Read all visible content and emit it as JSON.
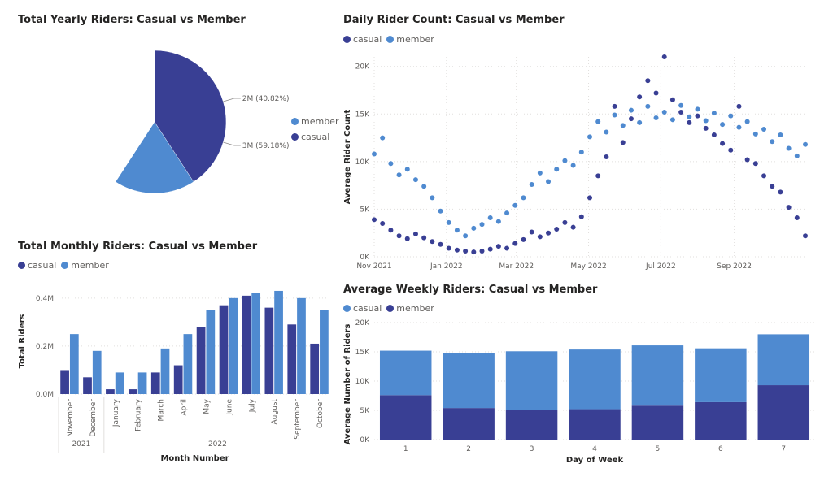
{
  "colors": {
    "casual": "#393f94",
    "member": "#4f8ad0"
  },
  "chart_data": [
    {
      "id": "pie",
      "type": "pie",
      "title": "Total Yearly Riders: Casual vs Member",
      "slices": [
        {
          "name": "casual",
          "value": 40.82,
          "label": "2M (40.82%)"
        },
        {
          "name": "member",
          "value": 59.18,
          "label": "3M (59.18%)"
        }
      ],
      "legend": [
        "member",
        "casual"
      ],
      "legend_position": "right"
    },
    {
      "id": "scatter",
      "type": "scatter",
      "title": "Daily Rider Count: Casual vs Member",
      "ylabel": "Average Rider Count",
      "xlabel": "",
      "x_ticks": [
        "Nov 2021",
        "Jan 2022",
        "Mar 2022",
        "May 2022",
        "Jul 2022",
        "Sep 2022"
      ],
      "y_ticks": [
        "0K",
        "5K",
        "10K",
        "15K",
        "20K"
      ],
      "ylim": [
        0,
        21000
      ],
      "xlim": [
        "2021-11-01",
        "2022-10-31"
      ],
      "legend": [
        "casual",
        "member"
      ],
      "legend_position": "top-left",
      "series": [
        {
          "name": "casual",
          "points": [
            [
              "2021-11-01",
              3900
            ],
            [
              "2021-11-08",
              3500
            ],
            [
              "2021-11-15",
              2800
            ],
            [
              "2021-11-22",
              2200
            ],
            [
              "2021-11-29",
              1900
            ],
            [
              "2021-12-06",
              2400
            ],
            [
              "2021-12-13",
              2000
            ],
            [
              "2021-12-20",
              1600
            ],
            [
              "2021-12-27",
              1300
            ],
            [
              "2022-01-03",
              900
            ],
            [
              "2022-01-10",
              700
            ],
            [
              "2022-01-17",
              600
            ],
            [
              "2022-01-24",
              500
            ],
            [
              "2022-01-31",
              600
            ],
            [
              "2022-02-07",
              800
            ],
            [
              "2022-02-14",
              1100
            ],
            [
              "2022-02-21",
              900
            ],
            [
              "2022-02-28",
              1400
            ],
            [
              "2022-03-07",
              1800
            ],
            [
              "2022-03-14",
              2600
            ],
            [
              "2022-03-21",
              2100
            ],
            [
              "2022-03-28",
              2500
            ],
            [
              "2022-04-04",
              2900
            ],
            [
              "2022-04-11",
              3600
            ],
            [
              "2022-04-18",
              3100
            ],
            [
              "2022-04-25",
              4200
            ],
            [
              "2022-05-02",
              6200
            ],
            [
              "2022-05-09",
              8500
            ],
            [
              "2022-05-16",
              10500
            ],
            [
              "2022-05-23",
              15800
            ],
            [
              "2022-05-30",
              12000
            ],
            [
              "2022-06-06",
              14500
            ],
            [
              "2022-06-13",
              16800
            ],
            [
              "2022-06-20",
              18500
            ],
            [
              "2022-06-27",
              17200
            ],
            [
              "2022-07-04",
              21000
            ],
            [
              "2022-07-11",
              16500
            ],
            [
              "2022-07-18",
              15200
            ],
            [
              "2022-07-25",
              14100
            ],
            [
              "2022-08-01",
              14800
            ],
            [
              "2022-08-08",
              13500
            ],
            [
              "2022-08-15",
              12800
            ],
            [
              "2022-08-22",
              11900
            ],
            [
              "2022-08-29",
              11200
            ],
            [
              "2022-09-05",
              15800
            ],
            [
              "2022-09-12",
              10200
            ],
            [
              "2022-09-19",
              9800
            ],
            [
              "2022-09-26",
              8500
            ],
            [
              "2022-10-03",
              7400
            ],
            [
              "2022-10-10",
              6800
            ],
            [
              "2022-10-17",
              5200
            ],
            [
              "2022-10-24",
              4100
            ],
            [
              "2022-10-31",
              2200
            ]
          ]
        },
        {
          "name": "member",
          "points": [
            [
              "2021-11-01",
              10800
            ],
            [
              "2021-11-08",
              12500
            ],
            [
              "2021-11-15",
              9800
            ],
            [
              "2021-11-22",
              8600
            ],
            [
              "2021-11-29",
              9200
            ],
            [
              "2021-12-06",
              8100
            ],
            [
              "2021-12-13",
              7400
            ],
            [
              "2021-12-20",
              6200
            ],
            [
              "2021-12-27",
              4800
            ],
            [
              "2022-01-03",
              3600
            ],
            [
              "2022-01-10",
              2800
            ],
            [
              "2022-01-17",
              2200
            ],
            [
              "2022-01-24",
              3000
            ],
            [
              "2022-01-31",
              3400
            ],
            [
              "2022-02-07",
              4100
            ],
            [
              "2022-02-14",
              3700
            ],
            [
              "2022-02-21",
              4600
            ],
            [
              "2022-02-28",
              5400
            ],
            [
              "2022-03-07",
              6200
            ],
            [
              "2022-03-14",
              7600
            ],
            [
              "2022-03-21",
              8800
            ],
            [
              "2022-03-28",
              7900
            ],
            [
              "2022-04-04",
              9200
            ],
            [
              "2022-04-11",
              10100
            ],
            [
              "2022-04-18",
              9600
            ],
            [
              "2022-04-25",
              11000
            ],
            [
              "2022-05-02",
              12600
            ],
            [
              "2022-05-09",
              14200
            ],
            [
              "2022-05-16",
              13100
            ],
            [
              "2022-05-23",
              14900
            ],
            [
              "2022-05-30",
              13800
            ],
            [
              "2022-06-06",
              15400
            ],
            [
              "2022-06-13",
              14100
            ],
            [
              "2022-06-20",
              15800
            ],
            [
              "2022-06-27",
              14600
            ],
            [
              "2022-07-04",
              15200
            ],
            [
              "2022-07-11",
              14400
            ],
            [
              "2022-07-18",
              15900
            ],
            [
              "2022-07-25",
              14700
            ],
            [
              "2022-08-01",
              15500
            ],
            [
              "2022-08-08",
              14300
            ],
            [
              "2022-08-15",
              15100
            ],
            [
              "2022-08-22",
              13900
            ],
            [
              "2022-08-29",
              14800
            ],
            [
              "2022-09-05",
              13600
            ],
            [
              "2022-09-12",
              14200
            ],
            [
              "2022-09-19",
              12900
            ],
            [
              "2022-09-26",
              13400
            ],
            [
              "2022-10-03",
              12100
            ],
            [
              "2022-10-10",
              12800
            ],
            [
              "2022-10-17",
              11400
            ],
            [
              "2022-10-24",
              10600
            ],
            [
              "2022-10-31",
              11800
            ]
          ]
        }
      ]
    },
    {
      "id": "monthly",
      "type": "bar",
      "title": "Total Monthly Riders: Casual vs Member",
      "xlabel": "Month Number",
      "ylabel": "Total Riders",
      "categories": [
        "November",
        "December",
        "January",
        "February",
        "March",
        "April",
        "May",
        "June",
        "July",
        "August",
        "September",
        "October"
      ],
      "year_groups": [
        {
          "label": "2021",
          "span": 2
        },
        {
          "label": "2022",
          "span": 10
        }
      ],
      "y_ticks": [
        "0.0M",
        "0.2M",
        "0.4M"
      ],
      "ylim": [
        0,
        0.44
      ],
      "legend": [
        "casual",
        "member"
      ],
      "legend_position": "top-left",
      "series": [
        {
          "name": "casual",
          "values": [
            0.1,
            0.07,
            0.02,
            0.02,
            0.09,
            0.12,
            0.28,
            0.37,
            0.41,
            0.36,
            0.29,
            0.21
          ]
        },
        {
          "name": "member",
          "values": [
            0.25,
            0.18,
            0.09,
            0.09,
            0.19,
            0.25,
            0.35,
            0.4,
            0.42,
            0.43,
            0.4,
            0.35
          ]
        }
      ]
    },
    {
      "id": "weekly",
      "type": "bar",
      "stacked": true,
      "title": "Average Weekly Riders: Casual vs Member",
      "xlabel": "Day of Week",
      "ylabel": "Average Number of Riders",
      "categories": [
        "1",
        "2",
        "3",
        "4",
        "5",
        "6",
        "7"
      ],
      "y_ticks": [
        "0K",
        "5K",
        "10K",
        "15K",
        "20K"
      ],
      "ylim": [
        0,
        20000
      ],
      "legend": [
        "casual",
        "member"
      ],
      "legend_position": "top-left",
      "series": [
        {
          "name": "casual",
          "values": [
            7600,
            5400,
            5000,
            5200,
            5800,
            6400,
            9300
          ]
        },
        {
          "name": "member",
          "values": [
            7600,
            9400,
            10100,
            10200,
            10300,
            9200,
            8700
          ]
        }
      ]
    }
  ]
}
